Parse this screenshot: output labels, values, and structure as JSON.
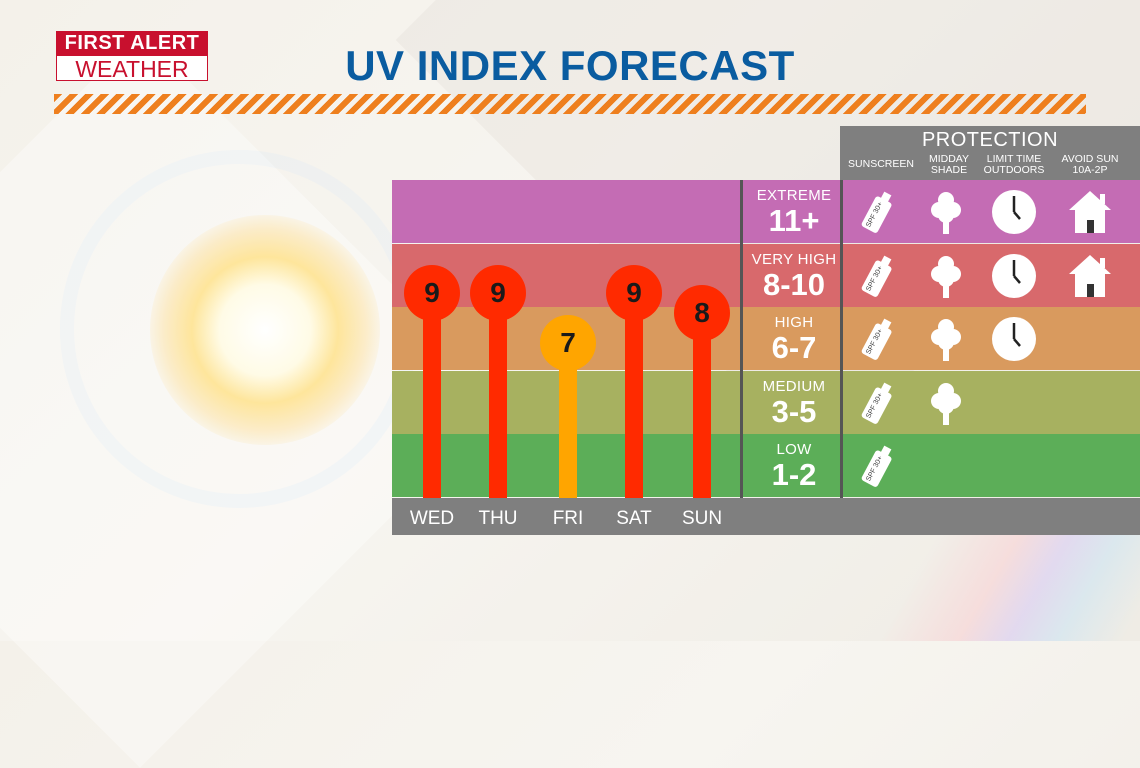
{
  "logo": {
    "line1": "FIRST ALERT",
    "line2": "WEATHER"
  },
  "title": "UV INDEX FORECAST",
  "protection": {
    "title": "PROTECTION",
    "columns": [
      {
        "line1": "SUNSCREEN",
        "line2": ""
      },
      {
        "line1": "MIDDAY",
        "line2": "SHADE"
      },
      {
        "line1": "LIMIT TIME",
        "line2": "OUTDOORS"
      },
      {
        "line1": "AVOID SUN",
        "line2": "10A-2P"
      }
    ],
    "spf_label": "SPF 30+"
  },
  "categories": [
    {
      "name": "EXTREME",
      "range": "11+",
      "color": "#c46cb4",
      "icons": [
        "sunscreen-icon",
        "tree-icon",
        "clock-icon",
        "house-icon"
      ]
    },
    {
      "name": "VERY HIGH",
      "range": "8-10",
      "color": "#d8696c",
      "icons": [
        "sunscreen-icon",
        "tree-icon",
        "clock-icon",
        "house-icon"
      ]
    },
    {
      "name": "HIGH",
      "range": "6-7",
      "color": "#d99a5e",
      "icons": [
        "sunscreen-icon",
        "tree-icon",
        "clock-icon"
      ]
    },
    {
      "name": "MEDIUM",
      "range": "3-5",
      "color": "#a7b160",
      "icons": [
        "sunscreen-icon",
        "tree-icon"
      ]
    },
    {
      "name": "LOW",
      "range": "1-2",
      "color": "#5cae58",
      "icons": [
        "sunscreen-icon"
      ]
    }
  ],
  "chart_data": {
    "type": "bar",
    "categories": [
      "WED",
      "THU",
      "FRI",
      "SAT",
      "SUN"
    ],
    "values": [
      9,
      9,
      7,
      9,
      8
    ],
    "title": "UV INDEX FORECAST",
    "ylim": [
      0,
      12
    ],
    "bar_colors": [
      "#ff2a00",
      "#ff2a00",
      "#ffa500",
      "#ff2a00",
      "#ff2a00"
    ],
    "grid": false
  }
}
